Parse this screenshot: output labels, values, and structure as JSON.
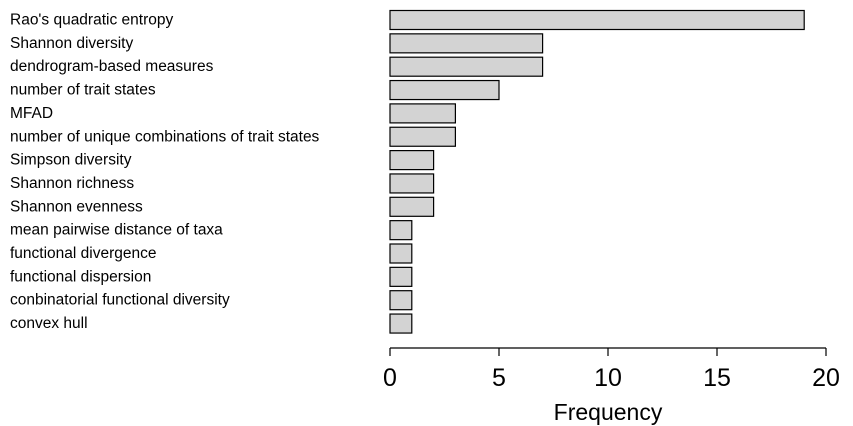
{
  "chart_data": {
    "type": "bar",
    "orientation": "horizontal",
    "categories": [
      "Rao's quadratic entropy",
      "Shannon diversity",
      "dendrogram-based measures",
      "number of trait states",
      "MFAD",
      "number of unique combinations of trait states",
      "Simpson diversity",
      "Shannon richness",
      "Shannon evenness",
      "mean pairwise distance of taxa",
      "functional divergence",
      "functional dispersion",
      "conbinatorial functional diversity",
      "convex hull"
    ],
    "values": [
      19,
      7,
      7,
      5,
      3,
      3,
      2,
      2,
      2,
      1,
      1,
      1,
      1,
      1
    ],
    "xlabel": "Frequency",
    "ylabel": "",
    "xlim": [
      0,
      20
    ],
    "xticks": [
      0,
      5,
      10,
      15,
      20
    ],
    "grid": false,
    "bar_fill": "#d3d3d3",
    "bar_stroke": "#000000"
  }
}
